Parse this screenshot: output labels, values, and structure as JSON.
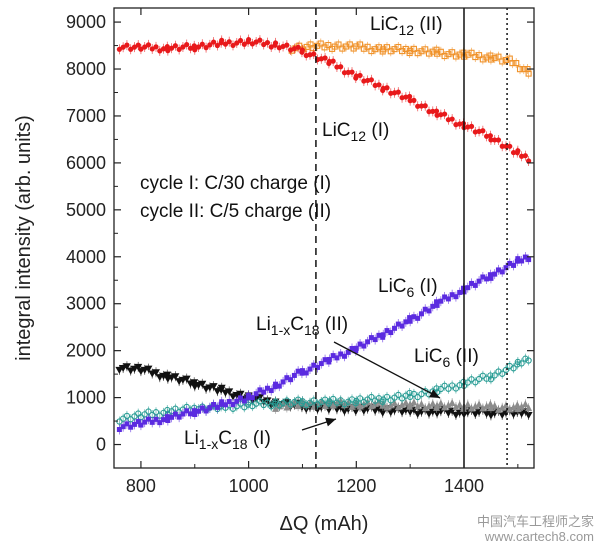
{
  "chart_data": {
    "type": "scatter",
    "xlabel": "ΔQ (mAh)",
    "ylabel": "integral intensity (arb. units)",
    "xlim": [
      750,
      1530
    ],
    "ylim": [
      -500,
      9300
    ],
    "x_ticks": [
      800,
      1000,
      1200,
      1400
    ],
    "y_ticks": [
      0,
      1000,
      2000,
      3000,
      4000,
      5000,
      6000,
      7000,
      8000,
      9000
    ],
    "grid": false,
    "vlines": [
      {
        "x": 1125,
        "style": "dashed"
      },
      {
        "x": 1400,
        "style": "solid"
      },
      {
        "x": 1480,
        "style": "dotted"
      }
    ],
    "annotations": [
      {
        "text": "cycle I:  C/30 charge (I)"
      },
      {
        "text": "cycle II: C/5 charge (II)"
      }
    ],
    "series": [
      {
        "name": "LiC12 (I)",
        "label_base": "LiC",
        "label_sub": "12",
        "label_tail": " (I)",
        "color": "#e8191b",
        "marker": "circle",
        "points": [
          [
            760,
            8480
          ],
          [
            800,
            8460
          ],
          [
            850,
            8440
          ],
          [
            900,
            8470
          ],
          [
            950,
            8550
          ],
          [
            1000,
            8580
          ],
          [
            1050,
            8520
          ],
          [
            1100,
            8380
          ],
          [
            1150,
            8150
          ],
          [
            1200,
            7850
          ],
          [
            1250,
            7600
          ],
          [
            1300,
            7350
          ],
          [
            1350,
            7050
          ],
          [
            1400,
            6800
          ],
          [
            1450,
            6550
          ],
          [
            1500,
            6200
          ],
          [
            1520,
            6100
          ]
        ]
      },
      {
        "name": "LiC12 (II)",
        "label_base": "LiC",
        "label_sub": "12",
        "label_tail": " (II)",
        "color": "#f0922a",
        "marker": "open-square",
        "points": [
          [
            1080,
            8450
          ],
          [
            1120,
            8480
          ],
          [
            1160,
            8490
          ],
          [
            1200,
            8470
          ],
          [
            1250,
            8420
          ],
          [
            1300,
            8400
          ],
          [
            1350,
            8350
          ],
          [
            1400,
            8300
          ],
          [
            1450,
            8250
          ],
          [
            1490,
            8150
          ],
          [
            1520,
            7950
          ]
        ]
      },
      {
        "name": "LiC6 (I)",
        "label_base": "LiC",
        "label_sub": "6",
        "label_tail": " (I)",
        "color": "#5b2be0",
        "marker": "filled-square",
        "points": [
          [
            760,
            380
          ],
          [
            800,
            450
          ],
          [
            850,
            560
          ],
          [
            900,
            700
          ],
          [
            950,
            850
          ],
          [
            1000,
            1000
          ],
          [
            1050,
            1250
          ],
          [
            1100,
            1550
          ],
          [
            1150,
            1800
          ],
          [
            1200,
            2050
          ],
          [
            1250,
            2350
          ],
          [
            1300,
            2650
          ],
          [
            1350,
            3000
          ],
          [
            1400,
            3300
          ],
          [
            1450,
            3600
          ],
          [
            1500,
            3900
          ],
          [
            1520,
            4000
          ]
        ]
      },
      {
        "name": "LiC6 (II)",
        "label_base": "LiC",
        "label_sub": "6",
        "label_tail": " (II)",
        "color": "#2a9d95",
        "marker": "open-circle",
        "points": [
          [
            760,
            550
          ],
          [
            800,
            620
          ],
          [
            850,
            700
          ],
          [
            900,
            760
          ],
          [
            950,
            800
          ],
          [
            1000,
            850
          ],
          [
            1050,
            880
          ],
          [
            1100,
            900
          ],
          [
            1150,
            910
          ],
          [
            1200,
            930
          ],
          [
            1250,
            970
          ],
          [
            1300,
            1040
          ],
          [
            1350,
            1150
          ],
          [
            1400,
            1300
          ],
          [
            1450,
            1450
          ],
          [
            1500,
            1700
          ],
          [
            1520,
            1850
          ]
        ]
      },
      {
        "name": "Li1-xC18 (I)",
        "label_base": "Li",
        "label_sub": "1-x",
        "label_mid": "C",
        "label_sub2": "18",
        "label_tail": " (I)",
        "color": "#111111",
        "marker": "down-triangle",
        "points": [
          [
            760,
            1650
          ],
          [
            800,
            1600
          ],
          [
            850,
            1450
          ],
          [
            900,
            1300
          ],
          [
            950,
            1150
          ],
          [
            1000,
            1000
          ],
          [
            1050,
            880
          ],
          [
            1100,
            820
          ],
          [
            1150,
            780
          ],
          [
            1200,
            760
          ],
          [
            1250,
            740
          ],
          [
            1300,
            720
          ],
          [
            1350,
            700
          ],
          [
            1400,
            690
          ],
          [
            1450,
            680
          ],
          [
            1500,
            680
          ],
          [
            1520,
            690
          ]
        ]
      },
      {
        "name": "Li1-xC18 (II)",
        "label_base": "Li",
        "label_sub": "1-x",
        "label_mid": "C",
        "label_sub2": "18",
        "label_tail": " (II)",
        "color": "#8c8c8c",
        "marker": "up-triangle",
        "points": [
          [
            1050,
            820
          ],
          [
            1100,
            860
          ],
          [
            1150,
            870
          ],
          [
            1200,
            860
          ],
          [
            1250,
            850
          ],
          [
            1300,
            840
          ],
          [
            1350,
            830
          ],
          [
            1400,
            820
          ],
          [
            1450,
            800
          ],
          [
            1500,
            790
          ],
          [
            1520,
            800
          ]
        ]
      }
    ]
  },
  "watermark": {
    "line1": "中国汽车工程师之家",
    "line2": "www.cartech8.com"
  }
}
